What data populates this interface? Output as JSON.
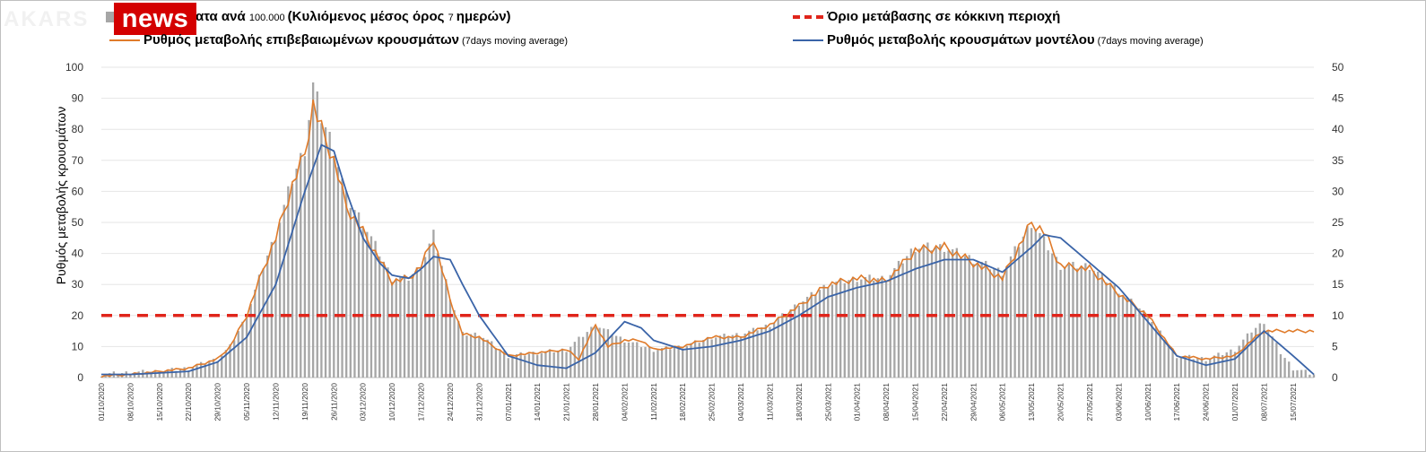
{
  "brand": {
    "logo_text": "news",
    "watermark_text": "AKARS"
  },
  "legend": {
    "bars": {
      "label_main": "ατα ανά ",
      "label_count": "100.000 ",
      "label_bold": "(Κυλιόμενος μέσος όρος ",
      "label_days": "7 ",
      "label_end": "ημερών)",
      "color": "#a6a6a6"
    },
    "threshold": {
      "label": "Όριο μετάβασης σε κόκκινη περιοχή",
      "color": "#e0251b"
    },
    "confirmed": {
      "label": "Ρυθμός μεταβολής επιβεβαιωμένων κρουσμάτων",
      "label_small": " (7days moving average)",
      "color": "#e07b2a"
    },
    "model": {
      "label": "Ρυθμός μεταβολής κρουσμάτων μοντέλου",
      "label_small": " (7days moving average)",
      "color": "#3a64a8"
    }
  },
  "chart_data": {
    "type": "bar",
    "ylabel": "Ρυθμός μεταβολής κρουσμάτων",
    "ylim": [
      0,
      100
    ],
    "y2lim": [
      0,
      50
    ],
    "yticks": [
      0,
      10,
      20,
      30,
      40,
      50,
      60,
      70,
      80,
      90,
      100
    ],
    "y2ticks": [
      0,
      5,
      10,
      15,
      20,
      25,
      30,
      35,
      40,
      45,
      50
    ],
    "x_start": "2020-10-01",
    "x_end": "2021-07-20",
    "xtick_labels": [
      "01/10/2020",
      "08/10/2020",
      "15/10/2020",
      "22/10/2020",
      "29/10/2020",
      "05/11/2020",
      "12/11/2020",
      "19/11/2020",
      "26/11/2020",
      "03/12/2020",
      "10/12/2020",
      "17/12/2020",
      "24/12/2020",
      "31/12/2020",
      "07/01/2021",
      "14/01/2021",
      "21/01/2021",
      "28/01/2021",
      "04/02/2021",
      "11/02/2021",
      "18/02/2021",
      "25/02/2021",
      "04/03/2021",
      "11/03/2021",
      "18/03/2021",
      "25/03/2021",
      "01/04/2021",
      "08/04/2021",
      "15/04/2021",
      "22/04/2021",
      "29/04/2021",
      "06/05/2021",
      "13/05/2021",
      "20/05/2021",
      "27/05/2021",
      "03/06/2021",
      "10/06/2021",
      "17/06/2021",
      "24/06/2021",
      "01/07/2021",
      "08/07/2021",
      "15/07/2021"
    ],
    "threshold": 20,
    "series": [
      {
        "name": "Ρυθμός μεταβολής επιβεβαιωμένων κρουσμάτων",
        "type": "line",
        "axis": "left",
        "x": [
          "2020-10-01",
          "2020-10-08",
          "2020-10-15",
          "2020-10-22",
          "2020-10-29",
          "2020-11-01",
          "2020-11-05",
          "2020-11-09",
          "2020-11-12",
          "2020-11-16",
          "2020-11-19",
          "2020-11-21",
          "2020-11-23",
          "2020-11-26",
          "2020-11-29",
          "2020-12-03",
          "2020-12-07",
          "2020-12-10",
          "2020-12-14",
          "2020-12-17",
          "2020-12-20",
          "2020-12-24",
          "2020-12-27",
          "2020-12-31",
          "2021-01-07",
          "2021-01-14",
          "2021-01-21",
          "2021-01-24",
          "2021-01-28",
          "2021-01-31",
          "2021-02-04",
          "2021-02-08",
          "2021-02-11",
          "2021-02-18",
          "2021-02-25",
          "2021-03-04",
          "2021-03-11",
          "2021-03-18",
          "2021-03-25",
          "2021-04-01",
          "2021-04-08",
          "2021-04-15",
          "2021-04-22",
          "2021-04-29",
          "2021-05-06",
          "2021-05-13",
          "2021-05-16",
          "2021-05-20",
          "2021-05-27",
          "2021-06-03",
          "2021-06-10",
          "2021-06-17",
          "2021-06-24",
          "2021-07-01",
          "2021-07-05",
          "2021-07-08"
        ],
        "values": [
          0.5,
          1,
          2,
          3,
          6,
          10,
          20,
          35,
          45,
          62,
          72,
          88,
          80,
          70,
          55,
          47,
          38,
          31,
          32,
          36,
          45,
          25,
          14,
          13,
          7,
          8,
          9,
          6,
          17,
          10,
          12,
          12,
          9,
          10,
          13,
          13,
          17,
          23,
          30,
          32,
          31,
          41,
          42,
          37,
          32,
          50,
          47,
          36,
          35,
          27,
          20,
          7,
          6,
          7,
          12,
          15
        ]
      },
      {
        "name": "Ρυθμός μεταβολής κρουσμάτων μοντέλου",
        "type": "line",
        "axis": "left",
        "x": [
          "2020-10-01",
          "2020-10-08",
          "2020-10-15",
          "2020-10-22",
          "2020-10-29",
          "2020-11-05",
          "2020-11-12",
          "2020-11-19",
          "2020-11-23",
          "2020-11-26",
          "2020-11-29",
          "2020-12-03",
          "2020-12-07",
          "2020-12-10",
          "2020-12-14",
          "2020-12-17",
          "2020-12-20",
          "2020-12-24",
          "2020-12-27",
          "2020-12-31",
          "2021-01-07",
          "2021-01-14",
          "2021-01-21",
          "2021-01-28",
          "2021-02-04",
          "2021-02-08",
          "2021-02-11",
          "2021-02-18",
          "2021-02-25",
          "2021-03-04",
          "2021-03-11",
          "2021-03-18",
          "2021-03-25",
          "2021-04-01",
          "2021-04-08",
          "2021-04-15",
          "2021-04-22",
          "2021-04-29",
          "2021-05-06",
          "2021-05-13",
          "2021-05-16",
          "2021-05-20",
          "2021-05-27",
          "2021-06-03",
          "2021-06-10",
          "2021-06-17",
          "2021-06-24",
          "2021-07-01",
          "2021-07-08",
          "2021-07-15",
          "2021-07-20"
        ],
        "values": [
          1,
          1,
          1.5,
          2,
          5,
          13,
          30,
          60,
          75,
          73,
          60,
          45,
          37,
          33,
          32,
          35,
          39,
          38,
          30,
          20,
          7,
          4,
          3,
          8,
          18,
          16,
          12,
          9,
          10,
          12,
          15,
          20,
          26,
          29,
          31,
          35,
          38,
          38,
          34,
          42,
          46,
          45,
          37,
          29,
          18,
          7,
          4,
          6,
          15,
          7,
          1
        ]
      },
      {
        "name": "bars",
        "type": "bar",
        "axis": "right",
        "x": [
          "2020-10-01",
          "2020-10-08",
          "2020-10-15",
          "2020-10-22",
          "2020-10-29",
          "2020-11-01",
          "2020-11-05",
          "2020-11-09",
          "2020-11-12",
          "2020-11-16",
          "2020-11-19",
          "2020-11-21",
          "2020-11-23",
          "2020-11-26",
          "2020-11-29",
          "2020-12-03",
          "2020-12-07",
          "2020-12-10",
          "2020-12-14",
          "2020-12-17",
          "2020-12-20",
          "2020-12-24",
          "2020-12-27",
          "2020-12-31",
          "2021-01-07",
          "2021-01-14",
          "2021-01-21",
          "2021-01-28",
          "2021-02-04",
          "2021-02-11",
          "2021-02-18",
          "2021-02-25",
          "2021-03-04",
          "2021-03-11",
          "2021-03-18",
          "2021-03-25",
          "2021-04-01",
          "2021-04-08",
          "2021-04-15",
          "2021-04-22",
          "2021-04-29",
          "2021-05-06",
          "2021-05-13",
          "2021-05-20",
          "2021-05-27",
          "2021-06-03",
          "2021-06-10",
          "2021-06-17",
          "2021-06-24",
          "2021-07-01",
          "2021-07-05",
          "2021-07-08",
          "2021-07-12",
          "2021-07-15",
          "2021-07-20"
        ],
        "values": [
          0.5,
          0.8,
          1,
          1.5,
          3,
          5,
          10,
          18,
          23,
          32,
          37,
          47,
          42,
          37,
          29,
          25,
          20,
          16,
          16,
          18,
          23,
          13,
          7,
          7,
          3.5,
          4,
          4.5,
          8.5,
          6,
          4.5,
          5,
          6.5,
          7,
          8.5,
          12,
          15,
          16,
          16,
          21,
          21,
          19,
          17,
          25,
          18,
          18,
          14,
          10,
          3.5,
          3,
          4.5,
          7.5,
          9,
          4,
          1.5,
          0.5
        ]
      }
    ]
  }
}
